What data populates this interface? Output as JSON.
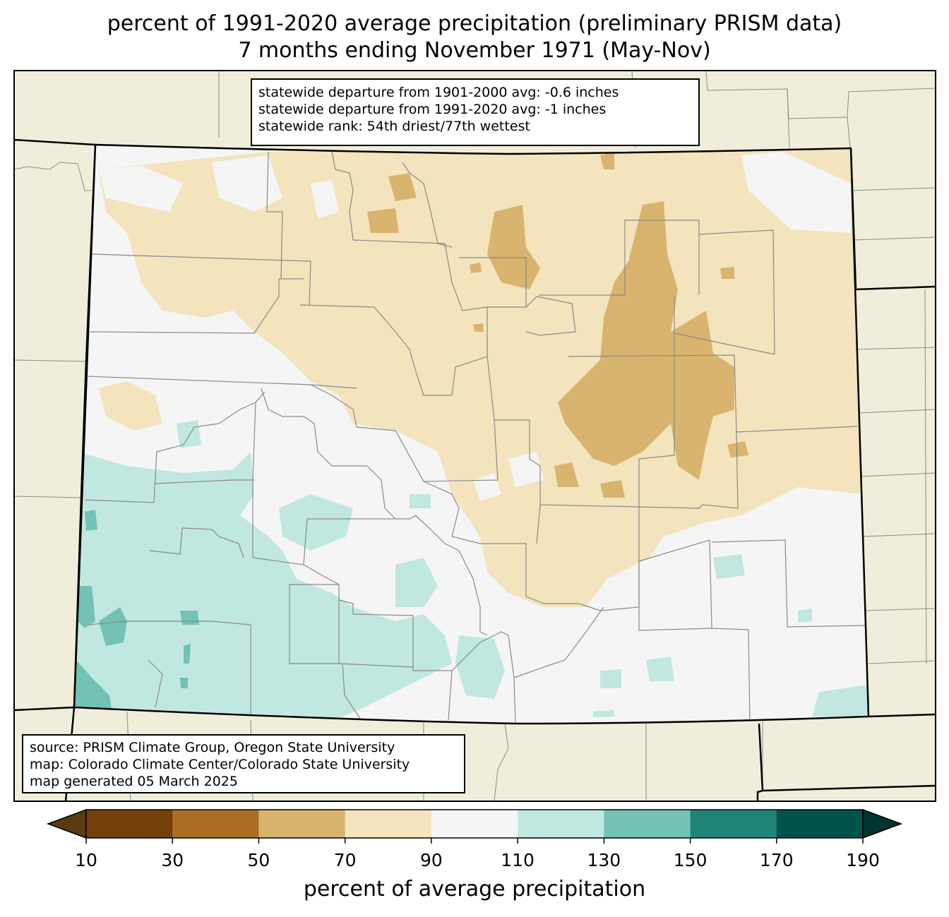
{
  "title": {
    "line1": "percent of 1991-2020 average precipitation (preliminary PRISM data)",
    "line2": "7 months ending November 1971 (May-Nov)"
  },
  "stats": {
    "line1": "statewide departure from 1901-2000 avg: -0.6 inches",
    "line2": "statewide departure from 1991-2020 avg: -1 inches",
    "line3": "statewide rank: 54th driest/77th wettest"
  },
  "source": {
    "line1": "source: PRISM Climate Group, Oregon State University",
    "line2": "map: Colorado Climate Center/Colorado State University",
    "line3": "map generated 05 March 2025"
  },
  "colorbar": {
    "label": "percent of average precipitation",
    "ticks": [
      "10",
      "30",
      "50",
      "70",
      "90",
      "110",
      "130",
      "150",
      "170",
      "190"
    ],
    "colors": [
      "#5a3a0f",
      "#734009",
      "#ab6e22",
      "#d9b46f",
      "#f3e4bd",
      "#f5f5f5",
      "#c1e7e1",
      "#73c2b6",
      "#218479",
      "#00534a",
      "#00352f"
    ]
  },
  "map": {
    "background_land": "#f0eedb",
    "state": "Colorado"
  }
}
